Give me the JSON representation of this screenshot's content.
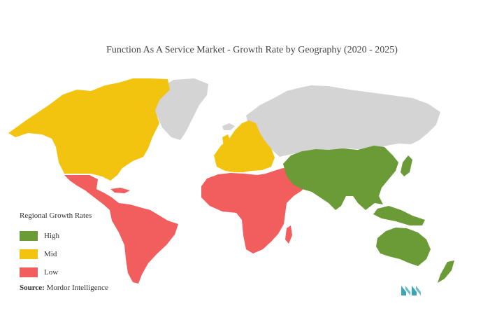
{
  "title": "Function As A Service Market - Growth Rate by Geography (2020 - 2025)",
  "legend": {
    "title": "Regional Growth Rates",
    "items": [
      {
        "label": "High",
        "color": "#6b9b37"
      },
      {
        "label": "Mid",
        "color": "#f2c40f"
      },
      {
        "label": "Low",
        "color": "#f25d5d"
      }
    ]
  },
  "colors": {
    "no_data": "#d4d4d4",
    "logo": "#3aa5b8"
  },
  "source": {
    "label": "Source:",
    "text": "Mordor Intelligence"
  },
  "regions": {
    "north_america": "Mid",
    "europe": "Mid",
    "latin_america": "Low",
    "middle_east_africa": "Low",
    "asia_pacific": "High"
  }
}
